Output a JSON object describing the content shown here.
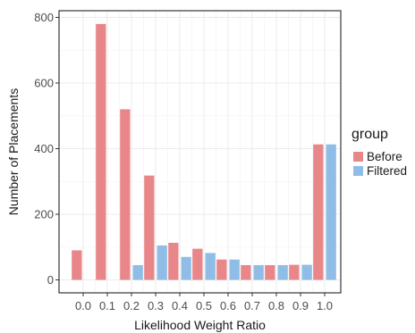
{
  "chart_data": {
    "type": "bar",
    "xlabel": "Likelihood Weight Ratio",
    "ylabel": "Number of Placements",
    "x_ticks": [
      "0.0",
      "0.1",
      "0.2",
      "0.3",
      "0.4",
      "0.5",
      "0.6",
      "0.7",
      "0.8",
      "0.9",
      "1.0"
    ],
    "y_ticks": [
      "0",
      "200",
      "400",
      "600",
      "800"
    ],
    "ylim": [
      0,
      800
    ],
    "grid": true,
    "legend": {
      "title": "group",
      "placement": "right"
    },
    "series": [
      {
        "name": "Before",
        "color": "#e8868a",
        "values": [
          90,
          780,
          520,
          318,
          113,
          95,
          62,
          45,
          45,
          46,
          413
        ]
      },
      {
        "name": "Filtered",
        "color": "#8fbde6",
        "values": [
          0,
          0,
          45,
          105,
          70,
          82,
          62,
          45,
          45,
          46,
          413
        ]
      }
    ]
  }
}
